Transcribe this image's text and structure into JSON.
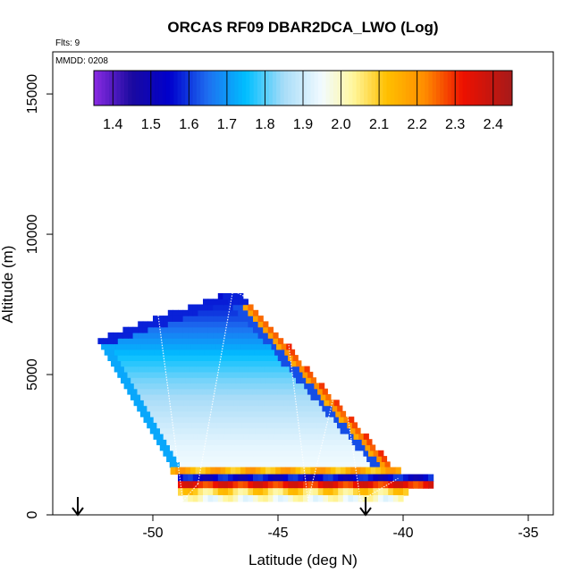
{
  "chart_data": {
    "type": "heatmap",
    "title": "ORCAS RF09 DBAR2DCA_LWO (Log)",
    "xlabel": "Latitude (deg N)",
    "ylabel": "Altitude (m)",
    "xlim": [
      -54,
      -34
    ],
    "ylim": [
      0,
      16500
    ],
    "x_ticks": [
      -50,
      -45,
      -40,
      -35
    ],
    "x_tick_labels": [
      "-50",
      "-45",
      "-40",
      "-35"
    ],
    "y_ticks": [
      0,
      5000,
      10000,
      15000
    ],
    "y_tick_labels": [
      "0",
      "5000",
      "10000",
      "15000"
    ],
    "annotations": {
      "flights": "Flts: 9",
      "date": "MMDD: 0208"
    },
    "colorbar": {
      "range": [
        1.35,
        2.45
      ],
      "ticks": [
        1.4,
        1.5,
        1.6,
        1.7,
        1.8,
        1.9,
        2.0,
        2.1,
        2.2,
        2.3,
        2.4
      ],
      "tick_labels": [
        "1.4",
        "1.5",
        "1.6",
        "1.7",
        "1.8",
        "1.9",
        "2.0",
        "2.1",
        "2.2",
        "2.3",
        "2.4"
      ],
      "stops": [
        {
          "value": 1.35,
          "color": "#8a2be2"
        },
        {
          "value": 1.45,
          "color": "#1a0aa0"
        },
        {
          "value": 1.55,
          "color": "#0000cd"
        },
        {
          "value": 1.65,
          "color": "#1e6ff0"
        },
        {
          "value": 1.75,
          "color": "#00bfff"
        },
        {
          "value": 1.85,
          "color": "#a8dcf8"
        },
        {
          "value": 1.95,
          "color": "#f2fbff"
        },
        {
          "value": 2.03,
          "color": "#fff7a0"
        },
        {
          "value": 2.12,
          "color": "#ffc000"
        },
        {
          "value": 2.22,
          "color": "#ff8c00"
        },
        {
          "value": 2.32,
          "color": "#ee1100"
        },
        {
          "value": 2.45,
          "color": "#a61a1a"
        }
      ]
    },
    "domain": {
      "main_upper_edge": [
        [
          -52.2,
          6200
        ],
        [
          -49.0,
          7200
        ],
        [
          -47.0,
          7800
        ]
      ],
      "left_edge": [
        [
          -52.2,
          6200
        ],
        [
          -49.2,
          1600
        ]
      ],
      "right_edge": [
        [
          -46.5,
          8000
        ],
        [
          -40.3,
          1600
        ]
      ],
      "main_bottom": 1700,
      "main_profile": [
        [
          1700,
          1.95
        ],
        [
          2500,
          1.93
        ],
        [
          3200,
          1.9
        ],
        [
          4000,
          1.86
        ],
        [
          4800,
          1.82
        ],
        [
          5600,
          1.76
        ],
        [
          6400,
          1.68
        ],
        [
          7200,
          1.6
        ],
        [
          8000,
          1.55
        ]
      ],
      "lower_bands": [
        {
          "alt_min": 1450,
          "alt_max": 1700,
          "xmin": -49.3,
          "xmax": -40.0,
          "value": 2.15
        },
        {
          "alt_min": 1200,
          "alt_max": 1450,
          "xmin": -49.0,
          "xmax": -38.9,
          "value": 1.55
        },
        {
          "alt_min": 950,
          "alt_max": 1200,
          "xmin": -49.0,
          "xmax": -38.9,
          "value": 2.32
        },
        {
          "alt_min": 700,
          "alt_max": 950,
          "xmin": -49.0,
          "xmax": -39.8,
          "value": 2.08
        },
        {
          "alt_min": 480,
          "alt_max": 700,
          "xmin": -48.8,
          "xmax": -39.9,
          "value": 1.98
        }
      ]
    },
    "flight_track": [
      [
        -49.8,
        7200
      ],
      [
        -48.8,
        500
      ],
      [
        -48.2,
        1100
      ],
      [
        -46.8,
        8000
      ],
      [
        -44.7,
        7000
      ],
      [
        -43.8,
        500
      ],
      [
        -42.5,
        5200
      ],
      [
        -41.7,
        500
      ],
      [
        -40.2,
        1300
      ]
    ],
    "markers": [
      {
        "lat": -53.0,
        "label": "down-arrow"
      },
      {
        "lat": -41.5,
        "label": "down-arrow"
      }
    ]
  }
}
